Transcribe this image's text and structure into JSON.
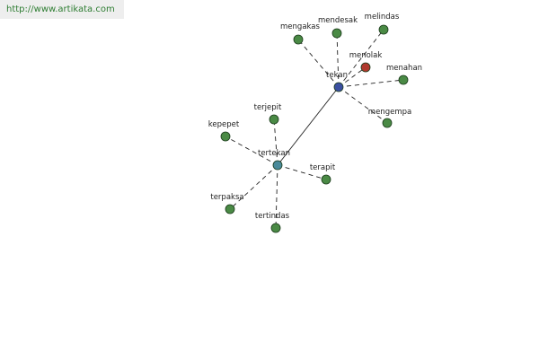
{
  "header": {
    "url": "http://www.artikata.com"
  },
  "nodes": [
    {
      "label": "tekan"
    },
    {
      "label": "mengakas"
    },
    {
      "label": "mendesak"
    },
    {
      "label": "melindas"
    },
    {
      "label": "menolak"
    },
    {
      "label": "menahan"
    },
    {
      "label": "mengempa"
    },
    {
      "label": "tertekan"
    },
    {
      "label": "terjepit"
    },
    {
      "label": "kepepet"
    },
    {
      "label": "terapit"
    },
    {
      "label": "terpaksa"
    },
    {
      "label": "tertindas"
    }
  ]
}
